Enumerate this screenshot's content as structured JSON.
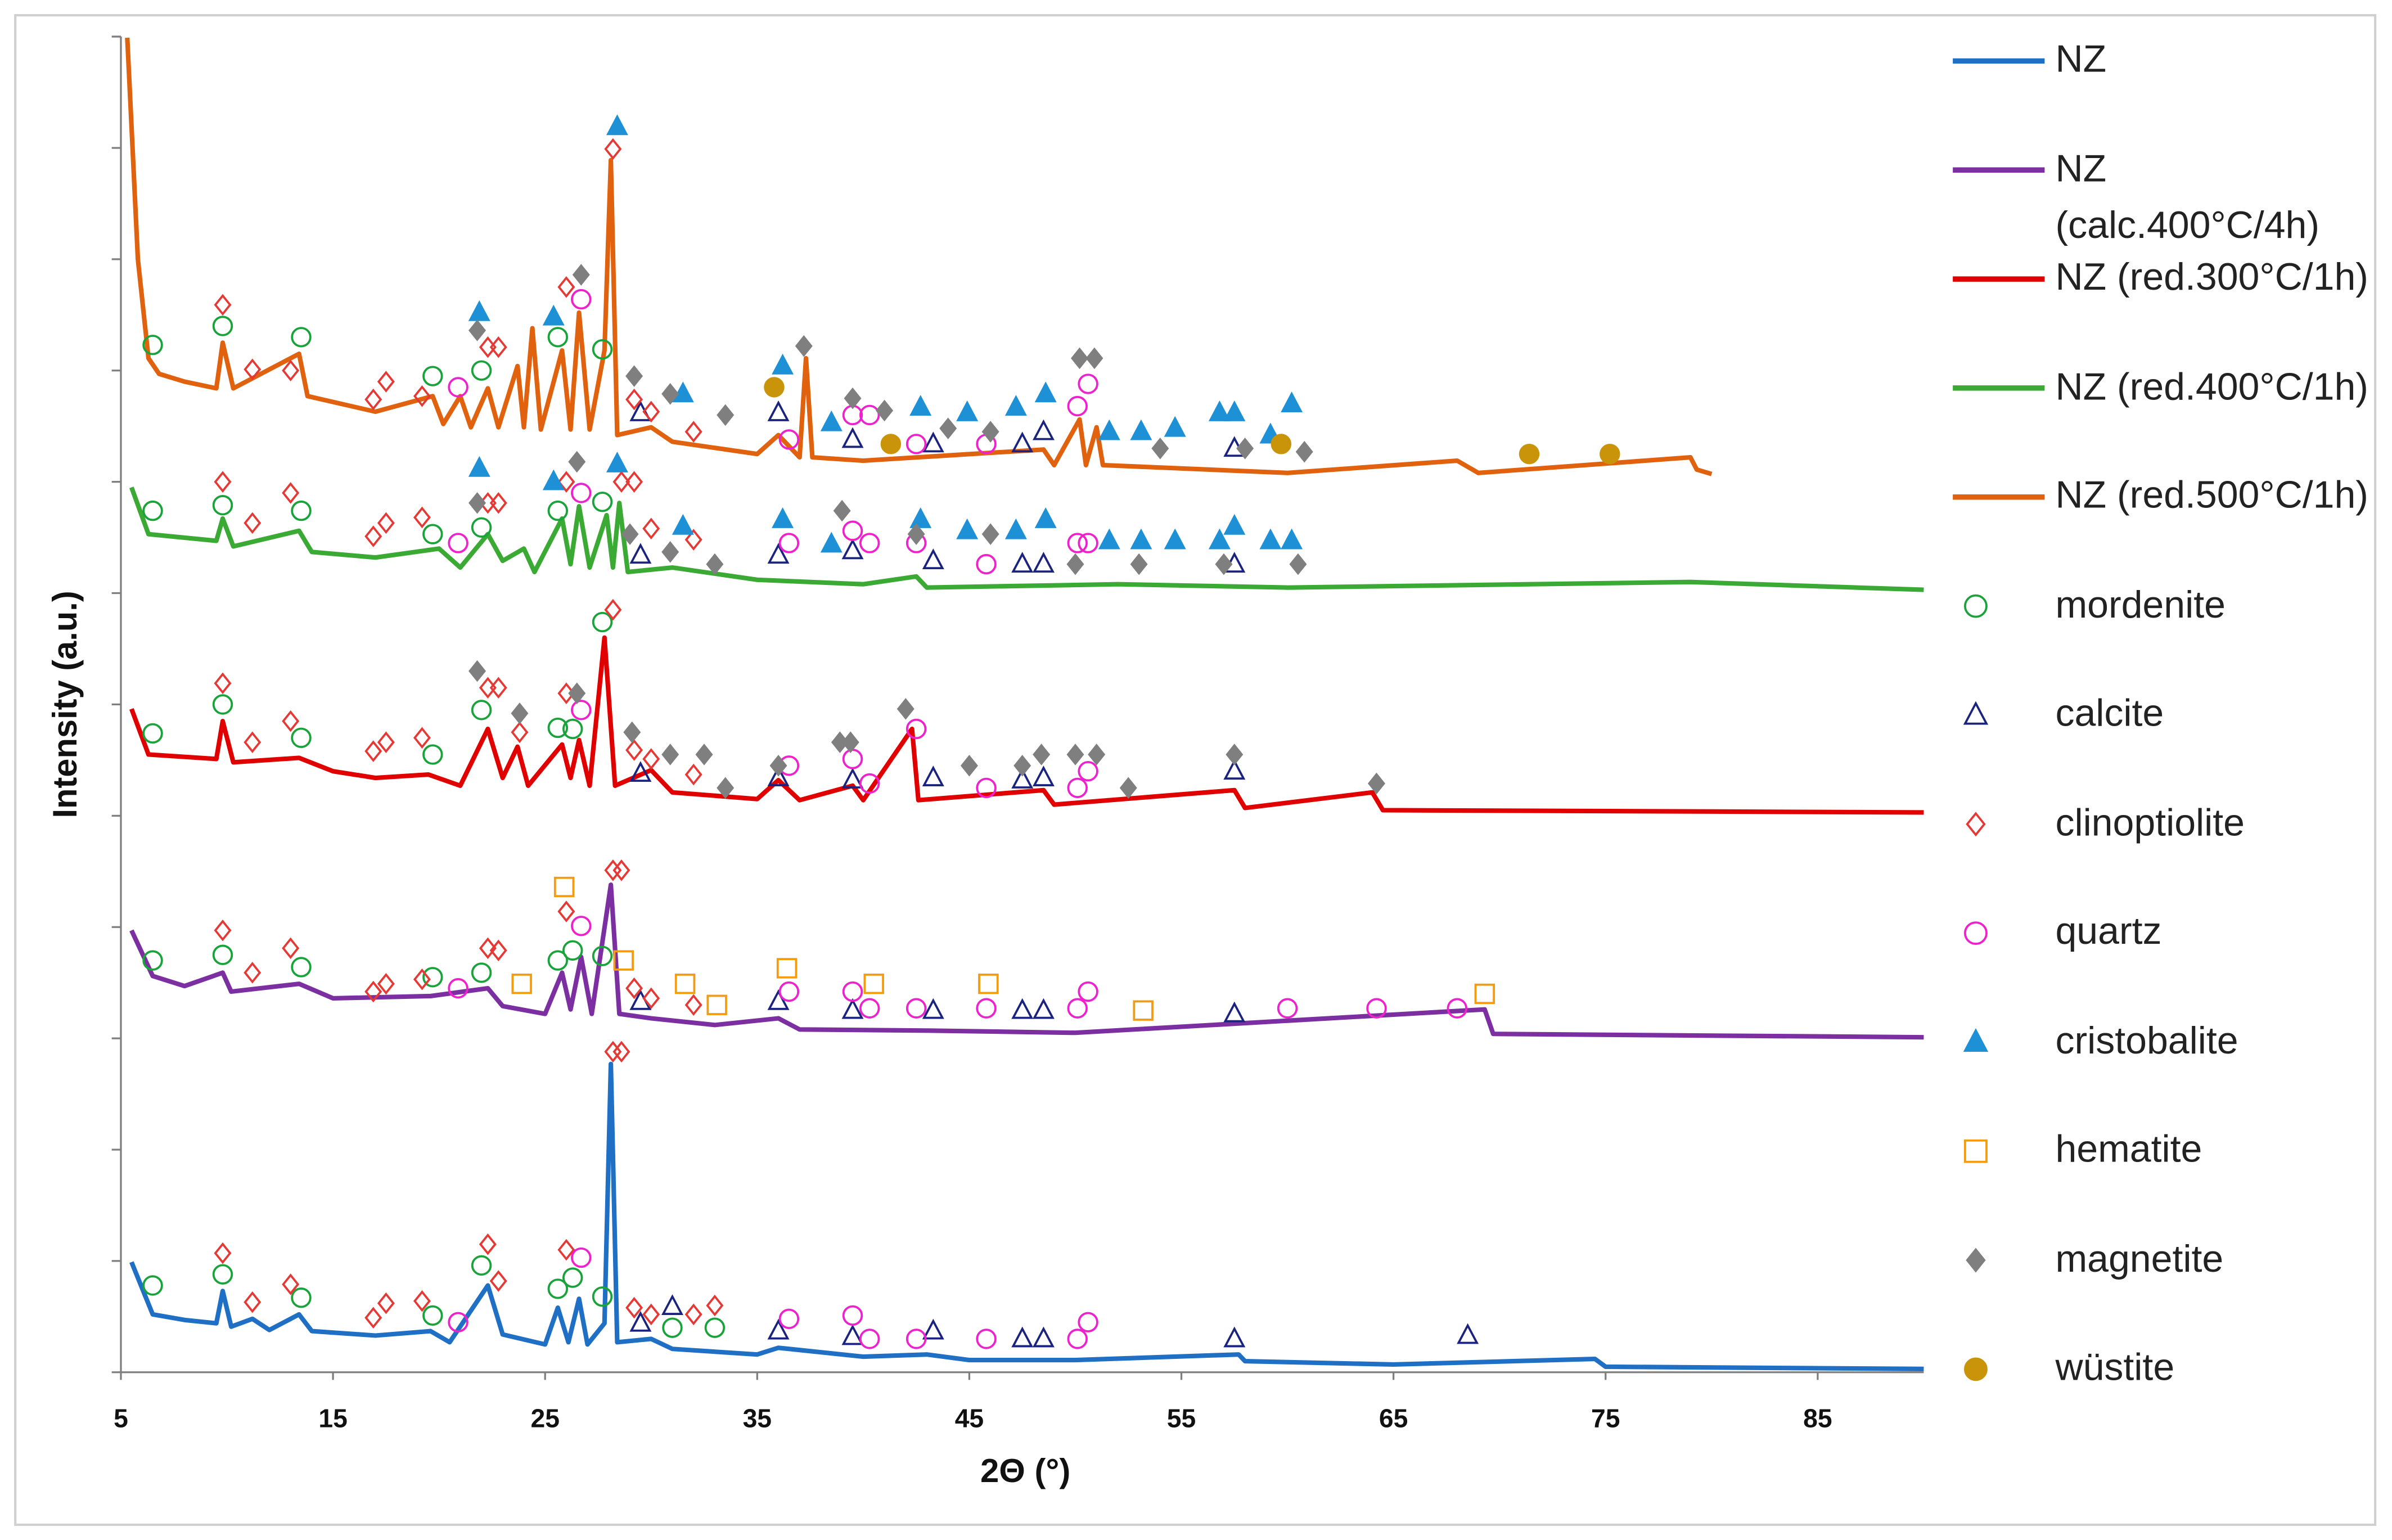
{
  "chart_data": {
    "type": "line",
    "xlabel": "2Θ (°)",
    "ylabel": "Intensity (a.u.)",
    "xlim": [
      5,
      90
    ],
    "xticks": [
      5,
      15,
      25,
      35,
      45,
      55,
      65,
      75,
      85
    ],
    "ylim": [
      0,
      12
    ],
    "yticks": [
      0,
      1,
      2,
      3,
      4,
      5,
      6,
      7,
      8,
      9,
      10,
      11,
      12
    ],
    "series": [
      {
        "name": "NZ",
        "color": "#1f6fc5",
        "x": [
          5.5,
          6.5,
          8,
          9.5,
          9.8,
          10.2,
          11.2,
          12,
          13.4,
          14,
          17,
          19.6,
          20.5,
          22.3,
          23,
          25,
          25.6,
          26.1,
          26.6,
          27,
          27.8,
          28.1,
          28.4,
          30,
          31,
          35,
          36,
          40,
          43,
          45,
          50,
          57.7,
          58,
          65,
          74.5,
          75,
          90
        ],
        "values": [
          0.99,
          0.52,
          0.47,
          0.44,
          0.73,
          0.41,
          0.48,
          0.38,
          0.52,
          0.37,
          0.33,
          0.37,
          0.27,
          0.78,
          0.34,
          0.25,
          0.58,
          0.27,
          0.66,
          0.25,
          0.44,
          2.77,
          0.27,
          0.3,
          0.21,
          0.16,
          0.22,
          0.14,
          0.16,
          0.11,
          0.11,
          0.16,
          0.1,
          0.07,
          0.12,
          0.05,
          0.03
        ]
      },
      {
        "name": "NZ (calc.400°C/4h)",
        "color": "#7b2fa0",
        "x": [
          5.5,
          6.5,
          8,
          9.8,
          10.2,
          13.4,
          15,
          19.6,
          22.3,
          23,
          25,
          25.8,
          26.2,
          26.7,
          27.2,
          28.1,
          28.5,
          30,
          33,
          36,
          37,
          43,
          50,
          69.3,
          69.7,
          90
        ],
        "values": [
          3.97,
          3.56,
          3.47,
          3.59,
          3.42,
          3.49,
          3.36,
          3.38,
          3.45,
          3.29,
          3.22,
          3.59,
          3.26,
          3.73,
          3.22,
          4.38,
          3.22,
          3.18,
          3.12,
          3.18,
          3.08,
          3.07,
          3.05,
          3.26,
          3.04,
          3.01
        ]
      },
      {
        "name": "NZ (red.300°C/1h)",
        "color": "#e00000",
        "x": [
          5.5,
          6.3,
          9.5,
          9.8,
          10.3,
          13.4,
          15,
          17,
          19.5,
          21,
          22.3,
          23,
          23.7,
          24.2,
          25.8,
          26.2,
          26.6,
          27.1,
          27.8,
          28.3,
          30,
          31,
          35,
          36,
          37,
          39.5,
          40,
          42.3,
          42.6,
          48.5,
          49,
          57.5,
          58,
          64,
          64.5,
          90
        ],
        "values": [
          5.96,
          5.55,
          5.51,
          5.85,
          5.48,
          5.52,
          5.4,
          5.34,
          5.37,
          5.27,
          5.78,
          5.34,
          5.62,
          5.27,
          5.64,
          5.34,
          5.68,
          5.27,
          6.6,
          5.27,
          5.41,
          5.21,
          5.15,
          5.32,
          5.14,
          5.27,
          5.14,
          5.78,
          5.14,
          5.23,
          5.1,
          5.23,
          5.07,
          5.21,
          5.05,
          5.03
        ]
      },
      {
        "name": "NZ (red.400°C/1h)",
        "color": "#3aaa35",
        "x": [
          5.5,
          6.3,
          9.5,
          9.8,
          10.3,
          13.4,
          14,
          17,
          20,
          21,
          22.3,
          23,
          24,
          24.5,
          25.8,
          26.2,
          26.6,
          27.1,
          27.9,
          28.2,
          28.5,
          28.9,
          31,
          35,
          40,
          42.5,
          43,
          52,
          60,
          79,
          90
        ],
        "values": [
          7.95,
          7.53,
          7.47,
          7.67,
          7.42,
          7.56,
          7.37,
          7.32,
          7.4,
          7.23,
          7.53,
          7.29,
          7.4,
          7.19,
          7.67,
          7.26,
          7.78,
          7.23,
          7.7,
          7.23,
          7.81,
          7.19,
          7.23,
          7.12,
          7.08,
          7.15,
          7.05,
          7.08,
          7.05,
          7.1,
          7.03
        ]
      },
      {
        "name": "NZ (red.500°C/1h)",
        "color": "#e0620f",
        "x": [
          5.3,
          5.8,
          6.3,
          6.8,
          8,
          9.5,
          9.8,
          10.3,
          13.4,
          13.8,
          17,
          19.7,
          20.2,
          21,
          21.5,
          22.3,
          22.8,
          23.7,
          24,
          24.4,
          24.8,
          25.8,
          26.2,
          26.6,
          27.1,
          27.8,
          28.1,
          28.4,
          30,
          31,
          35,
          36,
          37,
          37.3,
          37.6,
          40,
          48.5,
          49,
          50.2,
          50.5,
          51,
          51.3,
          60,
          68,
          69,
          79,
          79.3,
          80
        ],
        "values": [
          11.99,
          10.0,
          9.11,
          8.97,
          8.9,
          8.84,
          9.25,
          8.84,
          9.15,
          8.77,
          8.63,
          8.77,
          8.52,
          8.77,
          8.49,
          8.84,
          8.49,
          9.04,
          8.49,
          9.38,
          8.47,
          9.18,
          8.47,
          9.52,
          8.47,
          9.18,
          10.89,
          8.42,
          8.49,
          8.36,
          8.25,
          8.42,
          8.22,
          9.11,
          8.22,
          8.19,
          8.29,
          8.15,
          8.56,
          8.15,
          8.49,
          8.15,
          8.08,
          8.19,
          8.08,
          8.22,
          8.11,
          8.07
        ]
      }
    ],
    "markers": [
      {
        "name": "mordenite",
        "color": "#1aa33a",
        "marker": "circle",
        "filled": false,
        "x": [
          6.5,
          9.8,
          13.5,
          19.7,
          22,
          25.6,
          26.3,
          27.7,
          31,
          33,
          6.5,
          9.8,
          13.5,
          19.7,
          22,
          25.6,
          26.3,
          27.7,
          6.5,
          9.8,
          13.5,
          19.7,
          22,
          25.6,
          26.3,
          27.7,
          6.5,
          9.8,
          13.5,
          19.7,
          22,
          25.6,
          27.7,
          6.5,
          9.8,
          13.5,
          19.7,
          22,
          25.6,
          27.7
        ],
        "values": [
          0.78,
          0.88,
          0.67,
          0.51,
          0.96,
          0.75,
          0.85,
          0.68,
          0.4,
          0.4,
          3.7,
          3.75,
          3.64,
          3.55,
          3.59,
          3.7,
          3.79,
          3.74,
          5.74,
          6.0,
          5.7,
          5.55,
          5.95,
          5.79,
          5.78,
          6.74,
          7.74,
          7.79,
          7.74,
          7.53,
          7.59,
          7.74,
          7.82,
          9.23,
          9.4,
          9.3,
          8.95,
          9.0,
          9.3,
          9.19
        ]
      },
      {
        "name": "calcite",
        "color": "#1a237e",
        "marker": "triangle",
        "filled": false,
        "x": [
          29.5,
          31,
          36,
          39.5,
          43.3,
          47.5,
          48.5,
          57.5,
          68.5,
          29.5,
          36,
          39.5,
          43.3,
          47.5,
          48.5,
          57.5,
          29.5,
          36,
          39.5,
          43.3,
          47.5,
          48.5,
          57.5,
          29.5,
          36,
          39.5,
          43.3,
          47.5,
          48.5,
          57.5,
          29.5,
          36,
          39.5,
          43.3,
          47.5,
          48.5,
          57.5
        ],
        "values": [
          0.44,
          0.59,
          0.37,
          0.32,
          0.37,
          0.3,
          0.3,
          0.3,
          0.33,
          3.33,
          3.33,
          3.25,
          3.25,
          3.25,
          3.25,
          3.22,
          5.38,
          5.34,
          5.32,
          5.34,
          5.32,
          5.34,
          5.4,
          7.34,
          7.34,
          7.38,
          7.29,
          7.26,
          7.26,
          7.26,
          8.62,
          8.62,
          8.38,
          8.34,
          8.34,
          8.45,
          8.3
        ]
      },
      {
        "name": "clinoptiolite",
        "color": "#e53935",
        "marker": "diamond",
        "filled": false,
        "x": [
          9.8,
          11.2,
          13,
          16.9,
          17.5,
          19.2,
          22.3,
          22.8,
          26,
          28.2,
          28.6,
          29.2,
          30,
          32,
          33,
          9.8,
          11.2,
          13,
          16.9,
          17.5,
          19.2,
          22.3,
          22.8,
          26,
          28.2,
          28.6,
          29.2,
          30,
          32,
          9.8,
          11.2,
          13,
          16.9,
          17.5,
          19.2,
          22.3,
          22.8,
          23.8,
          26,
          28.2,
          29.2,
          30,
          32,
          9.8,
          11.2,
          13,
          16.9,
          17.5,
          19.2,
          22.3,
          22.8,
          26,
          28.6,
          29.2,
          30,
          32,
          9.8,
          11.2,
          13,
          16.9,
          17.5,
          19.2,
          22.3,
          22.8,
          26,
          28.2,
          29.2,
          30,
          32
        ],
        "values": [
          1.07,
          0.63,
          0.79,
          0.49,
          0.62,
          0.64,
          1.15,
          0.82,
          1.1,
          2.88,
          2.88,
          0.58,
          0.52,
          0.52,
          0.6,
          3.97,
          3.59,
          3.81,
          3.42,
          3.49,
          3.53,
          3.81,
          3.79,
          4.14,
          4.51,
          4.51,
          3.45,
          3.36,
          3.3,
          6.19,
          5.66,
          5.85,
          5.58,
          5.66,
          5.7,
          6.15,
          6.15,
          5.75,
          6.1,
          6.85,
          5.59,
          5.51,
          5.37,
          8.0,
          7.63,
          7.9,
          7.51,
          7.63,
          7.68,
          7.81,
          7.81,
          8.0,
          8.0,
          8.0,
          7.58,
          7.48,
          9.59,
          9.01,
          9.0,
          8.74,
          8.9,
          8.77,
          9.21,
          9.21,
          9.75,
          10.99,
          8.74,
          8.63,
          8.45
        ]
      },
      {
        "name": "quartz",
        "color": "#ee22cc",
        "marker": "circle",
        "filled": false,
        "x": [
          20.9,
          26.7,
          36.5,
          39.5,
          40.3,
          42.5,
          45.8,
          50.1,
          50.6,
          20.9,
          26.7,
          36.5,
          39.5,
          40.3,
          42.5,
          45.8,
          50.1,
          50.6,
          60,
          64.2,
          68,
          26.7,
          36.5,
          39.5,
          40.3,
          42.5,
          45.8,
          50.1,
          50.6,
          20.9,
          26.7,
          36.5,
          39.5,
          40.3,
          42.5,
          45.8,
          50.1,
          50.6,
          20.9,
          26.7,
          36.5,
          39.5,
          40.3,
          42.5,
          45.8,
          50.1,
          50.6
        ],
        "values": [
          0.45,
          1.03,
          0.48,
          0.51,
          0.3,
          0.3,
          0.3,
          0.3,
          0.45,
          3.45,
          4.01,
          3.42,
          3.42,
          3.27,
          3.27,
          3.27,
          3.27,
          3.42,
          3.27,
          3.27,
          3.27,
          5.95,
          5.45,
          5.51,
          5.29,
          5.78,
          5.25,
          5.25,
          5.4,
          7.45,
          7.9,
          7.45,
          7.56,
          7.45,
          7.45,
          7.26,
          7.45,
          7.45,
          8.85,
          9.64,
          8.38,
          8.6,
          8.6,
          8.34,
          8.34,
          8.68,
          8.88
        ]
      },
      {
        "name": "cristobalite",
        "color": "#1e90d6",
        "marker": "triangle",
        "filled": true,
        "x": [
          21.9,
          25.4,
          28.4,
          31.5,
          36.2,
          38.5,
          42.7,
          44.9,
          47.2,
          48.6,
          51.6,
          53.1,
          54.7,
          56.8,
          57.5,
          59.2,
          60.2,
          21.9,
          25.4,
          28.4,
          31.5,
          36.2,
          38.5,
          42.7,
          44.9,
          47.2,
          48.6,
          51.6,
          53.1,
          54.7,
          56.8,
          57.5,
          59.2,
          60.2
        ],
        "values": [
          9.52,
          9.48,
          11.19,
          8.79,
          9.04,
          8.53,
          8.67,
          8.62,
          8.67,
          8.79,
          8.45,
          8.45,
          8.48,
          8.62,
          8.62,
          8.42,
          8.7,
          8.12,
          8.0,
          8.16,
          7.6,
          7.66,
          7.44,
          7.66,
          7.56,
          7.56,
          7.66,
          7.47,
          7.47,
          7.47,
          7.47,
          7.6,
          7.47,
          7.47
        ]
      },
      {
        "name": "hematite",
        "color": "#f39c12",
        "marker": "square",
        "filled": false,
        "x": [
          23.9,
          25.9,
          28.7,
          31.6,
          33.1,
          36.4,
          40.5,
          45.9,
          53.2,
          69.3
        ],
        "values": [
          3.49,
          4.36,
          3.7,
          3.49,
          3.3,
          3.63,
          3.49,
          3.49,
          3.25,
          3.4
        ]
      },
      {
        "name": "magnetite",
        "color": "#7f7f7f",
        "marker": "diamond",
        "filled": true,
        "x": [
          21.8,
          23.8,
          26.5,
          29.1,
          30.9,
          32.5,
          33.5,
          36,
          38.9,
          39.4,
          42,
          45,
          47.5,
          48.4,
          50,
          51,
          52.5,
          57.5,
          64.2,
          21.8,
          26.5,
          29,
          30.9,
          33,
          39,
          42.5,
          46,
          50,
          53,
          57,
          60.5,
          21.8,
          26.7,
          29.2,
          30.9,
          33.5,
          37.2,
          39.5,
          41,
          44,
          46,
          50.2,
          50.9,
          54,
          58,
          60.8
        ],
        "values": [
          6.3,
          5.92,
          6.1,
          5.75,
          5.55,
          5.55,
          5.25,
          5.45,
          5.66,
          5.66,
          5.96,
          5.45,
          5.45,
          5.55,
          5.55,
          5.55,
          5.25,
          5.55,
          5.29,
          7.81,
          8.18,
          7.53,
          7.37,
          7.26,
          7.74,
          7.53,
          7.53,
          7.26,
          7.26,
          7.26,
          7.26,
          9.36,
          9.86,
          8.95,
          8.79,
          8.6,
          9.22,
          8.75,
          8.64,
          8.48,
          8.45,
          9.11,
          9.11,
          8.3,
          8.3,
          8.27
        ]
      },
      {
        "name": "wüstite",
        "color": "#c9940a",
        "marker": "circle",
        "filled": true,
        "x": [
          35.8,
          41.3,
          59.7,
          71.4,
          75.2
        ],
        "values": [
          8.85,
          8.34,
          8.34,
          8.25,
          8.25
        ]
      }
    ]
  }
}
